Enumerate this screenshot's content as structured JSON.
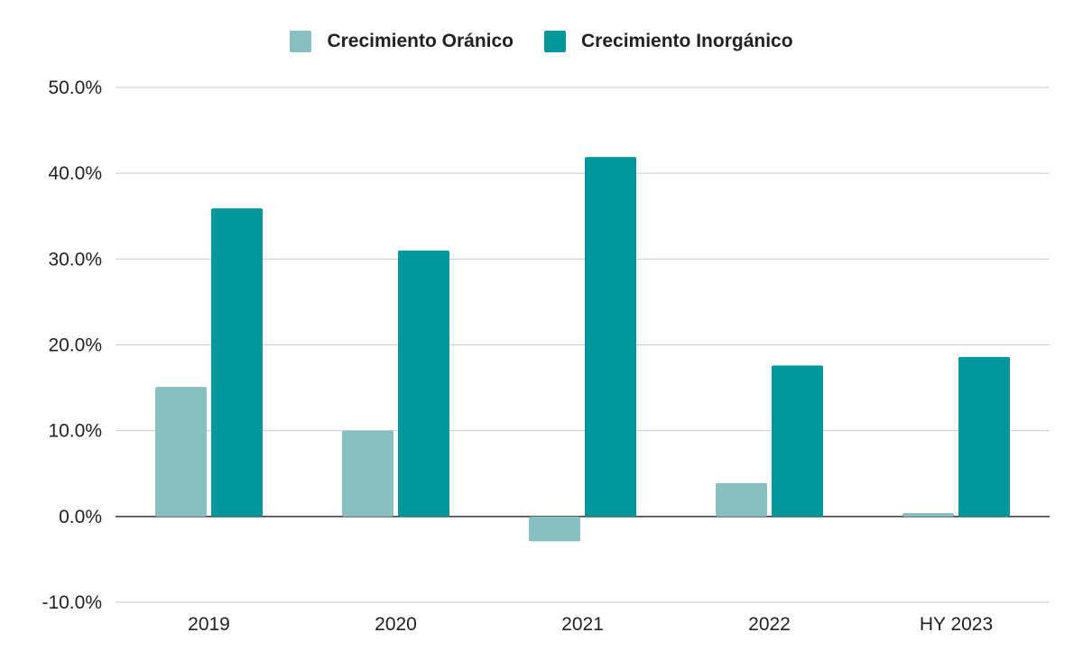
{
  "chart_data": {
    "type": "bar",
    "title": "",
    "xlabel": "",
    "ylabel": "",
    "categories": [
      "2019",
      "2020",
      "2021",
      "2022",
      "HY 2023"
    ],
    "series": [
      {
        "name": "Crecimiento Oránico",
        "color": "#88bfc1",
        "values": [
          15.1,
          10.0,
          -2.9,
          3.9,
          0.4
        ]
      },
      {
        "name": "Crecimiento Inorgánico",
        "color": "#02989b",
        "values": [
          35.9,
          31.0,
          41.9,
          17.6,
          18.6
        ]
      }
    ],
    "ylim": [
      -10,
      50
    ],
    "yticks": [
      -10,
      0,
      10,
      20,
      30,
      40,
      50
    ],
    "ytick_labels": [
      "-10.0%",
      "0.0%",
      "10.0%",
      "20.0%",
      "30.0%",
      "40.0%",
      "50.0%"
    ],
    "grid": true,
    "legend_position": "top-center"
  }
}
